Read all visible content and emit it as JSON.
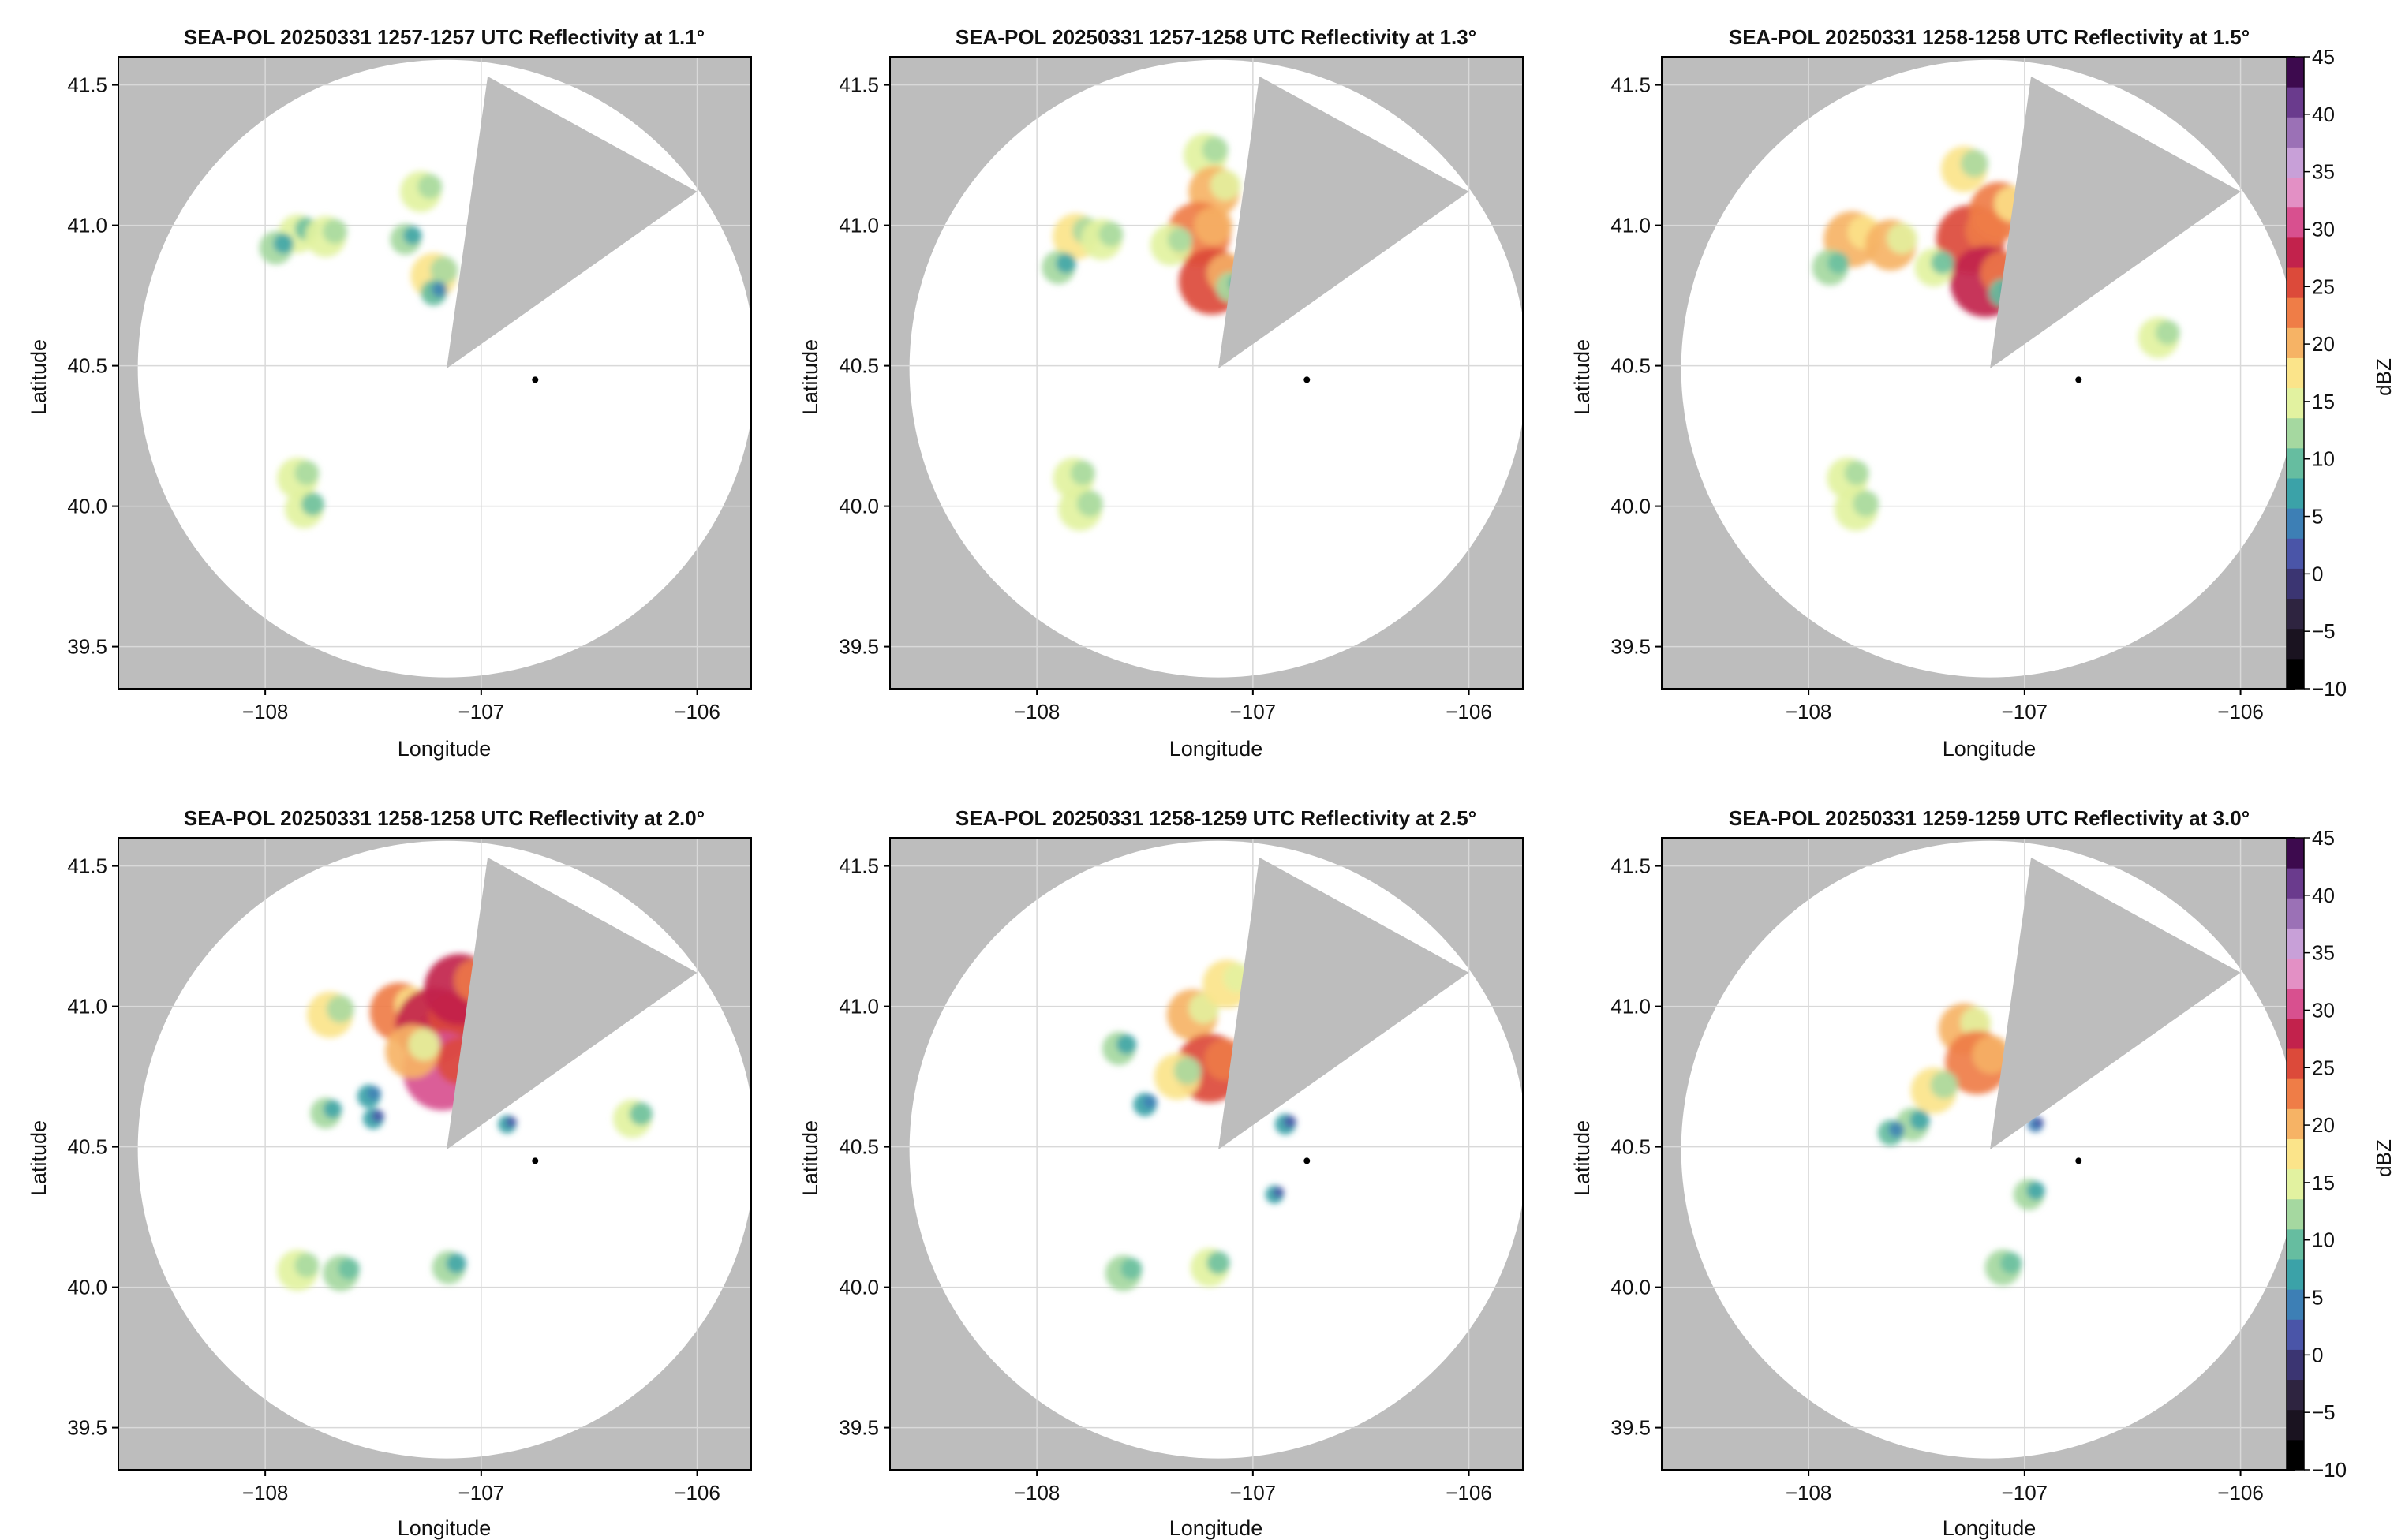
{
  "figure": {
    "colors": {
      "outside_range": "#bdbdbd",
      "background": "#ffffff",
      "grid": "#d9d9d9",
      "radar_marker": "#000000"
    }
  },
  "chart_data": [
    {
      "type": "heatmap",
      "title": "SEA-POL 20250331 1257-1257 UTC Reflectivity at 1.1°",
      "xlabel": "Longitude",
      "ylabel": "Latitude",
      "xlim": [
        -108.68,
        -105.75
      ],
      "ylim": [
        39.35,
        41.6
      ],
      "xticks": [
        -108,
        -107,
        -106
      ],
      "xtick_labels": [
        "−108",
        "−107",
        "−106"
      ],
      "yticks": [
        39.5,
        40.0,
        40.5,
        41.0,
        41.5
      ],
      "ytick_labels": [
        "39.5",
        "40.0",
        "40.5",
        "41.0",
        "41.5"
      ],
      "grid": true,
      "blocked_sector": [
        [
          -107.16,
          40.49
        ],
        [
          -106.97,
          41.53
        ],
        [
          -106.0,
          41.12
        ]
      ],
      "radar_site": [
        -106.75,
        40.45
      ],
      "echoes": [
        {
          "lon": -107.85,
          "lat": 40.97,
          "dbz": 14
        },
        {
          "lon": -107.95,
          "lat": 40.92,
          "dbz": 12
        },
        {
          "lon": -107.72,
          "lat": 40.96,
          "dbz": 15
        },
        {
          "lon": -107.28,
          "lat": 41.12,
          "dbz": 15
        },
        {
          "lon": -107.35,
          "lat": 40.95,
          "dbz": 11
        },
        {
          "lon": -107.22,
          "lat": 40.82,
          "dbz": 17
        },
        {
          "lon": -107.22,
          "lat": 40.76,
          "dbz": 9
        },
        {
          "lon": -107.85,
          "lat": 40.1,
          "dbz": 15
        },
        {
          "lon": -107.82,
          "lat": 39.99,
          "dbz": 14
        }
      ]
    },
    {
      "type": "heatmap",
      "title": "SEA-POL 20250331 1257-1258 UTC Reflectivity at 1.3°",
      "xlabel": "Longitude",
      "ylabel": "Latitude",
      "xlim": [
        -108.68,
        -105.75
      ],
      "ylim": [
        39.35,
        41.6
      ],
      "xticks": [
        -108,
        -107,
        -106
      ],
      "xtick_labels": [
        "−108",
        "−107",
        "−106"
      ],
      "yticks": [
        39.5,
        40.0,
        40.5,
        41.0,
        41.5
      ],
      "ytick_labels": [
        "39.5",
        "40.0",
        "40.5",
        "41.0",
        "41.5"
      ],
      "grid": true,
      "blocked_sector": [
        [
          -107.16,
          40.49
        ],
        [
          -106.97,
          41.53
        ],
        [
          -106.0,
          41.12
        ]
      ],
      "radar_site": [
        -106.75,
        40.45
      ],
      "echoes": [
        {
          "lon": -107.82,
          "lat": 40.96,
          "dbz": 17
        },
        {
          "lon": -107.7,
          "lat": 40.95,
          "dbz": 15
        },
        {
          "lon": -107.9,
          "lat": 40.85,
          "dbz": 12
        },
        {
          "lon": -107.22,
          "lat": 41.25,
          "dbz": 16
        },
        {
          "lon": -107.18,
          "lat": 41.12,
          "dbz": 19
        },
        {
          "lon": -107.25,
          "lat": 40.97,
          "dbz": 24
        },
        {
          "lon": -107.19,
          "lat": 40.8,
          "dbz": 25
        },
        {
          "lon": -107.38,
          "lat": 40.93,
          "dbz": 15
        },
        {
          "lon": -107.1,
          "lat": 40.78,
          "dbz": 11
        },
        {
          "lon": -107.83,
          "lat": 40.1,
          "dbz": 15
        },
        {
          "lon": -107.8,
          "lat": 39.99,
          "dbz": 16
        }
      ]
    },
    {
      "type": "heatmap",
      "title": "SEA-POL 20250331 1258-1258 UTC Reflectivity at 1.5°",
      "xlabel": "Longitude",
      "ylabel": "Latitude",
      "xlim": [
        -108.68,
        -105.75
      ],
      "ylim": [
        39.35,
        41.6
      ],
      "xticks": [
        -108,
        -107,
        -106
      ],
      "xtick_labels": [
        "−108",
        "−107",
        "−106"
      ],
      "yticks": [
        39.5,
        40.0,
        40.5,
        41.0,
        41.5
      ],
      "ytick_labels": [
        "39.5",
        "40.0",
        "40.5",
        "41.0",
        "41.5"
      ],
      "grid": true,
      "blocked_sector": [
        [
          -107.16,
          40.49
        ],
        [
          -106.97,
          41.53
        ],
        [
          -106.0,
          41.12
        ]
      ],
      "radar_site": [
        -106.75,
        40.45
      ],
      "echoes": [
        {
          "lon": -107.8,
          "lat": 40.95,
          "dbz": 21
        },
        {
          "lon": -107.62,
          "lat": 40.93,
          "dbz": 19
        },
        {
          "lon": -107.9,
          "lat": 40.85,
          "dbz": 13
        },
        {
          "lon": -107.28,
          "lat": 41.2,
          "dbz": 17
        },
        {
          "lon": -107.25,
          "lat": 40.95,
          "dbz": 26
        },
        {
          "lon": -107.18,
          "lat": 40.8,
          "dbz": 27
        },
        {
          "lon": -107.12,
          "lat": 41.05,
          "dbz": 22
        },
        {
          "lon": -107.42,
          "lat": 40.85,
          "dbz": 14
        },
        {
          "lon": -107.1,
          "lat": 40.76,
          "dbz": 10
        },
        {
          "lon": -106.38,
          "lat": 40.6,
          "dbz": 15
        },
        {
          "lon": -107.82,
          "lat": 40.1,
          "dbz": 15
        },
        {
          "lon": -107.78,
          "lat": 39.99,
          "dbz": 16
        }
      ]
    },
    {
      "type": "heatmap",
      "title": "SEA-POL 20250331 1258-1258 UTC Reflectivity at 2.0°",
      "xlabel": "Longitude",
      "ylabel": "Latitude",
      "xlim": [
        -108.68,
        -105.75
      ],
      "ylim": [
        39.35,
        41.6
      ],
      "xticks": [
        -108,
        -107,
        -106
      ],
      "xtick_labels": [
        "−108",
        "−107",
        "−106"
      ],
      "yticks": [
        39.5,
        40.0,
        40.5,
        41.0,
        41.5
      ],
      "ytick_labels": [
        "39.5",
        "40.0",
        "40.5",
        "41.0",
        "41.5"
      ],
      "grid": true,
      "blocked_sector": [
        [
          -107.16,
          40.49
        ],
        [
          -106.97,
          41.53
        ],
        [
          -106.0,
          41.12
        ]
      ],
      "radar_site": [
        -106.75,
        40.45
      ],
      "echoes": [
        {
          "lon": -107.7,
          "lat": 40.97,
          "dbz": 17
        },
        {
          "lon": -107.38,
          "lat": 40.98,
          "dbz": 22
        },
        {
          "lon": -107.22,
          "lat": 40.93,
          "dbz": 29
        },
        {
          "lon": -107.1,
          "lat": 41.06,
          "dbz": 27
        },
        {
          "lon": -107.18,
          "lat": 40.77,
          "dbz": 30
        },
        {
          "lon": -107.32,
          "lat": 40.84,
          "dbz": 20
        },
        {
          "lon": -107.52,
          "lat": 40.68,
          "dbz": 8
        },
        {
          "lon": -107.72,
          "lat": 40.62,
          "dbz": 11
        },
        {
          "lon": -107.5,
          "lat": 40.6,
          "dbz": 7
        },
        {
          "lon": -106.88,
          "lat": 40.58,
          "dbz": 6
        },
        {
          "lon": -106.3,
          "lat": 40.6,
          "dbz": 14
        },
        {
          "lon": -107.85,
          "lat": 40.06,
          "dbz": 15
        },
        {
          "lon": -107.65,
          "lat": 40.05,
          "dbz": 13
        },
        {
          "lon": -107.15,
          "lat": 40.07,
          "dbz": 12
        }
      ]
    },
    {
      "type": "heatmap",
      "title": "SEA-POL 20250331 1258-1259 UTC Reflectivity at 2.5°",
      "xlabel": "Longitude",
      "ylabel": "Latitude",
      "xlim": [
        -108.68,
        -105.75
      ],
      "ylim": [
        39.35,
        41.6
      ],
      "xticks": [
        -108,
        -107,
        -106
      ],
      "xtick_labels": [
        "−108",
        "−107",
        "−106"
      ],
      "yticks": [
        39.5,
        40.0,
        40.5,
        41.0,
        41.5
      ],
      "ytick_labels": [
        "39.5",
        "40.0",
        "40.5",
        "41.0",
        "41.5"
      ],
      "grid": true,
      "blocked_sector": [
        [
          -107.16,
          40.49
        ],
        [
          -106.97,
          41.53
        ],
        [
          -106.0,
          41.12
        ]
      ],
      "radar_site": [
        -106.75,
        40.45
      ],
      "echoes": [
        {
          "lon": -107.62,
          "lat": 40.85,
          "dbz": 12
        },
        {
          "lon": -107.28,
          "lat": 40.97,
          "dbz": 19
        },
        {
          "lon": -107.12,
          "lat": 41.08,
          "dbz": 18
        },
        {
          "lon": -107.2,
          "lat": 40.78,
          "dbz": 26
        },
        {
          "lon": -107.35,
          "lat": 40.75,
          "dbz": 17
        },
        {
          "lon": -107.5,
          "lat": 40.65,
          "dbz": 8
        },
        {
          "lon": -106.85,
          "lat": 40.58,
          "dbz": 7
        },
        {
          "lon": -106.9,
          "lat": 40.33,
          "dbz": 6
        },
        {
          "lon": -107.2,
          "lat": 40.07,
          "dbz": 14
        },
        {
          "lon": -107.6,
          "lat": 40.05,
          "dbz": 13
        }
      ]
    },
    {
      "type": "heatmap",
      "title": "SEA-POL 20250331 1259-1259 UTC Reflectivity at 3.0°",
      "xlabel": "Longitude",
      "ylabel": "Latitude",
      "xlim": [
        -108.68,
        -105.75
      ],
      "ylim": [
        39.35,
        41.6
      ],
      "xticks": [
        -108,
        -107,
        -106
      ],
      "xtick_labels": [
        "−108",
        "−107",
        "−106"
      ],
      "yticks": [
        39.5,
        40.0,
        40.5,
        41.0,
        41.5
      ],
      "ytick_labels": [
        "39.5",
        "40.0",
        "40.5",
        "41.0",
        "41.5"
      ],
      "grid": true,
      "blocked_sector": [
        [
          -107.16,
          40.49
        ],
        [
          -106.97,
          41.53
        ],
        [
          -106.0,
          41.12
        ]
      ],
      "radar_site": [
        -106.75,
        40.45
      ],
      "echoes": [
        {
          "lon": -107.28,
          "lat": 40.92,
          "dbz": 19
        },
        {
          "lon": -107.22,
          "lat": 40.8,
          "dbz": 24
        },
        {
          "lon": -107.42,
          "lat": 40.7,
          "dbz": 17
        },
        {
          "lon": -107.52,
          "lat": 40.58,
          "dbz": 12
        },
        {
          "lon": -107.62,
          "lat": 40.55,
          "dbz": 9
        },
        {
          "lon": -106.95,
          "lat": 40.58,
          "dbz": 5
        },
        {
          "lon": -106.98,
          "lat": 40.33,
          "dbz": 11
        },
        {
          "lon": -107.1,
          "lat": 40.07,
          "dbz": 13
        }
      ]
    }
  ],
  "colorbar": {
    "label": "dBZ",
    "range": [
      -10,
      45
    ],
    "ticks": [
      45,
      40,
      35,
      30,
      25,
      20,
      15,
      10,
      5,
      0,
      -5,
      -10
    ],
    "tick_labels": [
      "45",
      "40",
      "35",
      "30",
      "25",
      "20",
      "15",
      "10",
      "5",
      "0",
      "−5",
      "−10"
    ],
    "colors": [
      "#000000",
      "#1a1320",
      "#2e2440",
      "#3b3572",
      "#4a55a8",
      "#3d7fb5",
      "#3ba2a8",
      "#66bda0",
      "#a5d8a0",
      "#e2f2a0",
      "#fbe48a",
      "#f6b365",
      "#ef7d47",
      "#dc4a3a",
      "#c2224c",
      "#d8508f",
      "#e390c5",
      "#c8a0d8",
      "#9b71b6",
      "#6a3b8d",
      "#3d0a4e"
    ]
  }
}
